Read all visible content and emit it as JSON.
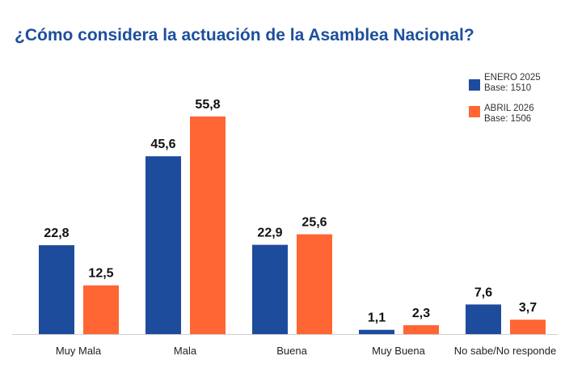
{
  "chart_data": {
    "type": "bar",
    "title": "¿Cómo considera la actuación de la Asamblea Nacional?",
    "categories": [
      "Muy Mala",
      "Mala",
      "Buena",
      "Muy Buena",
      "No sabe/No responde"
    ],
    "series": [
      {
        "name": "ENERO 2025",
        "base": "Base: 1510",
        "color": "#1d4c9c",
        "values": [
          22.8,
          45.6,
          22.9,
          1.1,
          7.6
        ],
        "labels": [
          "22,8",
          "45,6",
          "22,9",
          "1,1",
          "7,6"
        ]
      },
      {
        "name": "ABRIL 2026",
        "base": "Base: 1506",
        "color": "#ff6633",
        "values": [
          12.5,
          55.8,
          25.6,
          2.3,
          3.7
        ],
        "labels": [
          "12,5",
          "55,8",
          "25,6",
          "2,3",
          "3,7"
        ]
      }
    ],
    "xlabel": "",
    "ylabel": "",
    "ylim": [
      0,
      60
    ],
    "grid": false,
    "legend": "top-right"
  }
}
